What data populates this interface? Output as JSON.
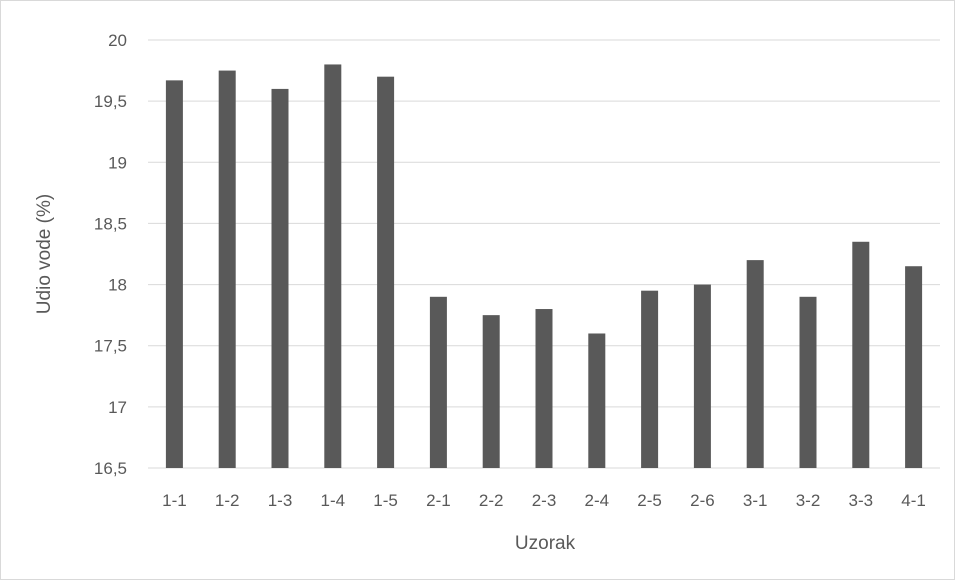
{
  "chart_data": {
    "type": "bar",
    "title": "",
    "xlabel": "Uzorak",
    "ylabel": "Udio vode (%)",
    "categories": [
      "1-1",
      "1-2",
      "1-3",
      "1-4",
      "1-5",
      "2-1",
      "2-2",
      "2-3",
      "2-4",
      "2-5",
      "2-6",
      "3-1",
      "3-2",
      "3-3",
      "4-1"
    ],
    "values": [
      19.67,
      19.75,
      19.6,
      19.8,
      19.7,
      17.9,
      17.75,
      17.8,
      17.6,
      17.95,
      18.0,
      18.2,
      17.9,
      18.35,
      18.15
    ],
    "ylim": [
      16.5,
      20
    ],
    "yticks": [
      16.5,
      17,
      17.5,
      18,
      18.5,
      19,
      19.5,
      20
    ],
    "ytick_labels": [
      "16,5",
      "17",
      "17,5",
      "18",
      "18,5",
      "19",
      "19,5",
      "20"
    ],
    "grid": true,
    "bar_color": "#595959",
    "grid_color": "#d9d9d9"
  }
}
